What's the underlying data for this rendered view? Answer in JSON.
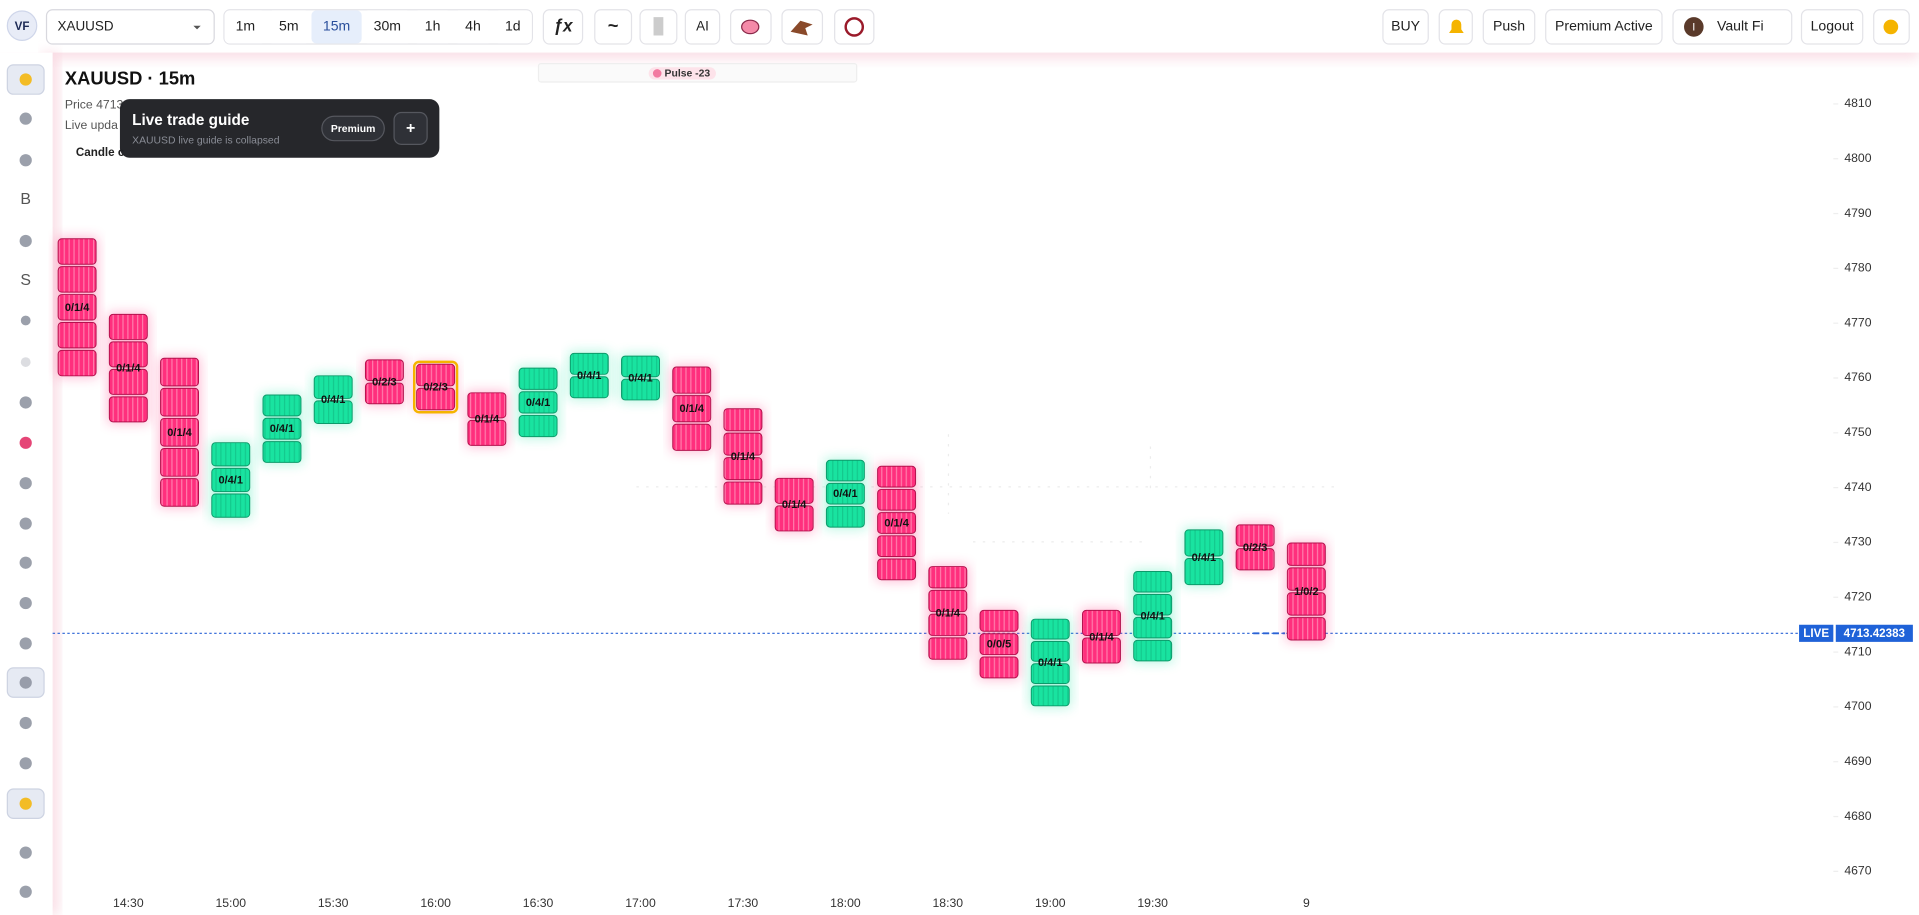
{
  "app": {
    "logo": "VF",
    "symbol": "XAUUSD",
    "timeframes": [
      "1m",
      "5m",
      "15m",
      "30m",
      "1h",
      "4h",
      "1d"
    ],
    "active_timeframe": "15m",
    "tools": [
      "ƒx",
      "~",
      "AI"
    ],
    "actions": [
      "BUY",
      "Push",
      "Premium Active",
      "Vault Fi",
      "Logout"
    ],
    "avatar": "I"
  },
  "sidebar": {
    "letters": [
      "B",
      "S"
    ]
  },
  "header": {
    "title": "XAUUSD · 15m",
    "price": "Price 4713",
    "live": "Live upda",
    "candle": "Candle c",
    "pulse": "Pulse -23"
  },
  "guide": {
    "title": "Live trade guide",
    "subtitle": "XAUUSD live guide is collapsed",
    "badge": "Premium",
    "button": "+"
  },
  "chart_data": {
    "type": "candlestick",
    "categories": [
      null,
      "14:30",
      null,
      "15:00",
      null,
      "15:30",
      null,
      "16:00",
      null,
      "16:30",
      null,
      "17:00",
      null,
      "17:30",
      null,
      "18:00",
      null,
      "18:30",
      null,
      "19:00",
      null,
      "19:30",
      null,
      null,
      "9"
    ],
    "open": [
      4785.4,
      4771.6,
      4763.6,
      4734.6,
      4744.6,
      4751.7,
      4763.3,
      4762.5,
      4757.3,
      4749.3,
      4756.4,
      4756.0,
      4762.0,
      4754.4,
      4741.7,
      4732.8,
      4743.9,
      4725.6,
      4717.6,
      4700.2,
      4717.6,
      4708.4,
      4722.3,
      4733.2,
      4729.9
    ],
    "close": [
      4760.4,
      4752.0,
      4736.6,
      4748.2,
      4756.9,
      4760.4,
      4755.3,
      4754.2,
      4747.7,
      4761.8,
      4764.5,
      4764.0,
      4746.8,
      4737.0,
      4732.1,
      4745.0,
      4723.2,
      4708.7,
      4705.3,
      4716.0,
      4708.0,
      4724.7,
      4732.3,
      4725.0,
      4712.2
    ],
    "cell_labels": [
      "0/1/4",
      "0/1/4",
      "0/1/4",
      "0/4/1",
      "0/4/1",
      "0/4/1",
      "0/2/3",
      "0/2/3",
      "0/1/4",
      "0/4/1",
      "0/4/1",
      "0/4/1",
      "0/1/4",
      "0/1/4",
      "0/1/4",
      "0/4/1",
      "0/1/4",
      "0/1/4",
      "0/0/5",
      "0/4/1",
      "0/1/4",
      "0/4/1",
      "0/4/1",
      "0/2/3",
      "1/0/2"
    ],
    "up_color": "#19e3a0",
    "down_color": "#ff2f7d",
    "highlight_index": 7,
    "ylim": [
      4666.5,
      4817.8
    ],
    "yticks": [
      4670,
      4680,
      4690,
      4700,
      4710,
      4720,
      4730,
      4740,
      4750,
      4760,
      4770,
      4780,
      4790,
      4800,
      4810
    ],
    "live_label": "LIVE",
    "live_price": 4713.42383
  }
}
